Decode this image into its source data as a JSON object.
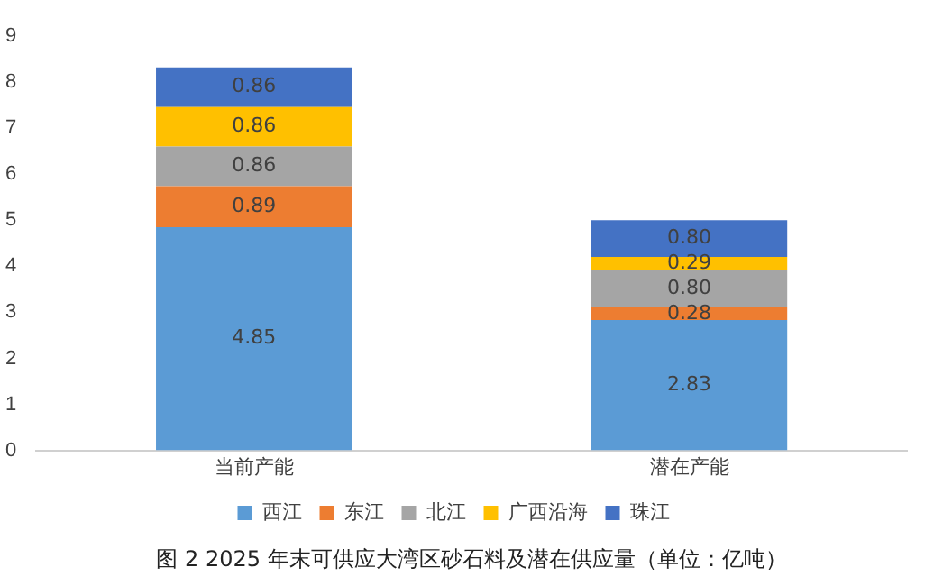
{
  "chart_data": {
    "type": "bar",
    "stacked": true,
    "categories": [
      "当前产能",
      "潜在产能"
    ],
    "series": [
      {
        "name": "西江",
        "color": "#5b9bd5",
        "values": [
          4.85,
          2.83
        ],
        "value_labels": [
          "4.85",
          "2.83"
        ]
      },
      {
        "name": "东江",
        "color": "#ed7d31",
        "values": [
          0.89,
          0.28
        ],
        "value_labels": [
          "0.89",
          "0.28"
        ]
      },
      {
        "name": "北江",
        "color": "#a5a5a5",
        "values": [
          0.86,
          0.8
        ],
        "value_labels": [
          "0.86",
          "0.80"
        ]
      },
      {
        "name": "广西沿海",
        "color": "#ffc000",
        "values": [
          0.86,
          0.29
        ],
        "value_labels": [
          "0.86",
          "0.29"
        ]
      },
      {
        "name": "珠江",
        "color": "#4472c4",
        "values": [
          0.86,
          0.8
        ],
        "value_labels": [
          "0.86",
          "0.80"
        ]
      }
    ],
    "ylim": [
      0,
      9
    ],
    "yticks": [
      0,
      1,
      2,
      3,
      4,
      5,
      6,
      7,
      8,
      9
    ],
    "grid": false,
    "legend": "bottom",
    "annotations": [
      "图 2 2025 年末可供应大湾区砂石料及潜在供应量（单位：亿吨）"
    ]
  }
}
